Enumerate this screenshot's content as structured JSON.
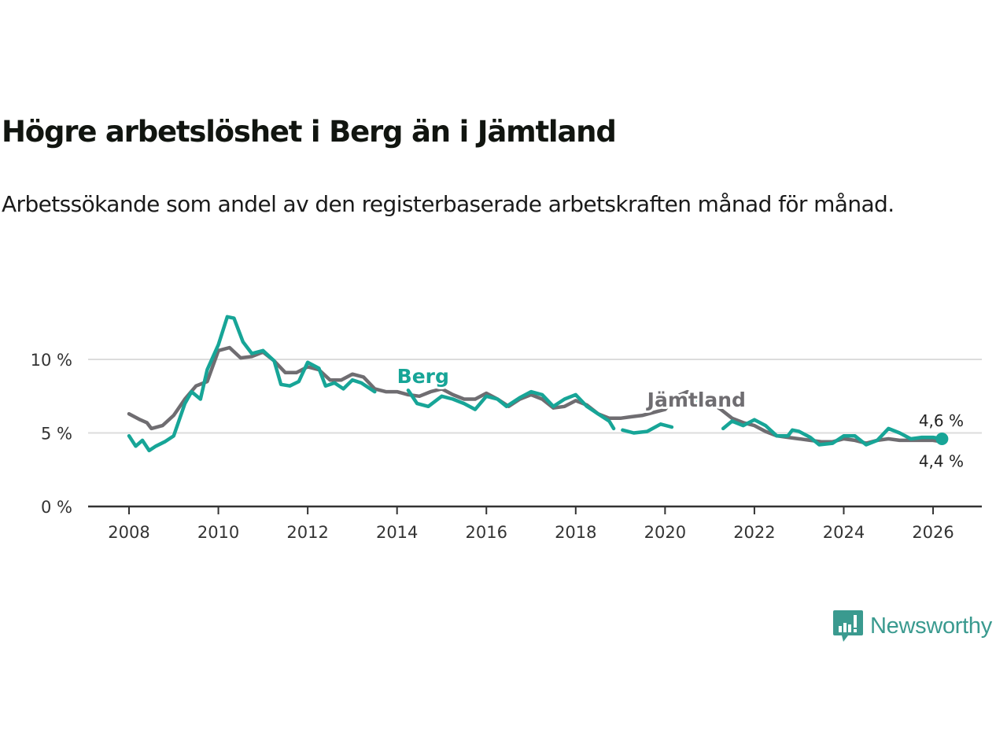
{
  "header": {
    "title": "Högre arbetslöshet i Berg än i Jämtland",
    "subtitle": "Arbetssökande som andel av den registerbaserade arbetskraften månad för månad."
  },
  "branding": {
    "name": "Newsworthy",
    "icon": "newsworthy-chart-bubble-icon",
    "color": "#3a9a8f"
  },
  "chart_data": {
    "type": "line",
    "title": "Högre arbetslöshet i Berg än i Jämtland",
    "subtitle": "Arbetssökande som andel av den registerbaserade arbetskraften månad för månad.",
    "xlabel": "",
    "ylabel": "",
    "xlim": [
      2007.2,
      2027.2
    ],
    "ylim": [
      0,
      13
    ],
    "x_ticks": [
      2008,
      2010,
      2012,
      2014,
      2016,
      2018,
      2020,
      2022,
      2024,
      2026
    ],
    "x_tick_labels": [
      "2008",
      "2010",
      "2012",
      "2014",
      "2016",
      "2018",
      "2020",
      "2022",
      "2024",
      "2026"
    ],
    "y_ticks": [
      0,
      5,
      10
    ],
    "y_tick_labels": [
      "0 %",
      "5 %",
      "10 %"
    ],
    "grid": "horizontal",
    "legend": "inline-labels",
    "series": [
      {
        "name": "Jämtland",
        "color": "#6f6d71",
        "label_at": [
          2019.6,
          6.8
        ],
        "end_label": "4,4 %",
        "x": [
          2008.0,
          2008.25,
          2008.4,
          2008.5,
          2008.75,
          2009.0,
          2009.25,
          2009.5,
          2009.75,
          2010.0,
          2010.25,
          2010.5,
          2010.75,
          2011.0,
          2011.25,
          2011.5,
          2011.75,
          2012.0,
          2012.25,
          2012.5,
          2012.75,
          2013.0,
          2013.25,
          2013.5,
          2013.75,
          2014.0,
          2014.25,
          2014.5,
          2014.75,
          2015.0,
          2015.25,
          2015.5,
          2015.75,
          2016.0,
          2016.25,
          2016.5,
          2016.75,
          2017.0,
          2017.25,
          2017.5,
          2017.75,
          2018.0,
          2018.25,
          2018.5,
          2018.75,
          2019.0,
          2019.25,
          2019.5,
          2019.75,
          2020.0,
          2020.25,
          2020.5,
          2020.75,
          2021.0,
          2021.25,
          2021.5,
          2021.75,
          2022.0,
          2022.25,
          2022.5,
          2022.75,
          2023.0,
          2023.25,
          2023.5,
          2023.75,
          2024.0,
          2024.25,
          2024.5,
          2024.75,
          2025.0,
          2025.25,
          2025.5,
          2025.75,
          2026.0,
          2026.2
        ],
        "y": [
          6.3,
          5.9,
          5.7,
          5.3,
          5.5,
          6.2,
          7.3,
          8.2,
          8.5,
          10.6,
          10.8,
          10.1,
          10.2,
          10.5,
          9.9,
          9.1,
          9.1,
          9.5,
          9.3,
          8.6,
          8.6,
          9.0,
          8.8,
          8.0,
          7.8,
          7.8,
          7.6,
          7.5,
          7.8,
          8.0,
          7.6,
          7.3,
          7.3,
          7.7,
          7.3,
          6.8,
          7.3,
          7.6,
          7.3,
          6.7,
          6.8,
          7.2,
          6.9,
          6.3,
          6.0,
          6.0,
          6.1,
          6.2,
          6.4,
          6.6,
          7.5,
          7.8,
          7.3,
          7.1,
          6.6,
          6.0,
          5.7,
          5.5,
          5.1,
          4.8,
          4.7,
          4.6,
          4.5,
          4.4,
          4.4,
          4.6,
          4.5,
          4.3,
          4.5,
          4.6,
          4.5,
          4.5,
          4.5,
          4.5,
          4.4
        ]
      },
      {
        "name": "Berg",
        "color": "#17a597",
        "label_at": [
          2014.0,
          8.4
        ],
        "end_label": "4,6 %",
        "x": [
          2008.0,
          2008.15,
          2008.3,
          2008.45,
          2008.6,
          2008.8,
          2009.0,
          2009.25,
          2009.4,
          2009.6,
          2009.75,
          2010.0,
          2010.2,
          2010.35,
          2010.55,
          2010.75,
          2011.0,
          2011.25,
          2011.4,
          2011.6,
          2011.8,
          2012.0,
          2012.25,
          2012.4,
          2012.6,
          2012.8,
          2013.0,
          2013.2,
          2013.5,
          2014.25,
          2014.45,
          2014.7,
          2015.0,
          2015.25,
          2015.5,
          2015.75,
          2016.0,
          2016.25,
          2016.45,
          2016.75,
          2017.0,
          2017.25,
          2017.5,
          2017.75,
          2018.0,
          2018.25,
          2018.5,
          2018.75,
          2018.85,
          2019.05,
          2019.3,
          2019.6,
          2019.9,
          2020.15,
          2020.6,
          2020.9,
          2021.3,
          2021.5,
          2021.75,
          2022.0,
          2022.25,
          2022.5,
          2022.75,
          2022.85,
          2023.0,
          2023.25,
          2023.45,
          2023.75,
          2024.0,
          2024.25,
          2024.5,
          2024.75,
          2025.0,
          2025.25,
          2025.5,
          2025.75,
          2026.0,
          2026.2
        ],
        "y": [
          4.8,
          4.1,
          4.5,
          3.8,
          4.1,
          4.4,
          4.8,
          7.0,
          7.8,
          7.3,
          9.3,
          11.0,
          12.9,
          12.8,
          11.2,
          10.4,
          10.6,
          9.9,
          8.3,
          8.2,
          8.5,
          9.8,
          9.4,
          8.2,
          8.4,
          8.0,
          8.6,
          8.4,
          7.8,
          7.9,
          7.0,
          6.8,
          7.5,
          7.3,
          7.0,
          6.6,
          7.5,
          7.3,
          6.8,
          7.4,
          7.8,
          7.6,
          6.8,
          7.3,
          7.6,
          6.8,
          6.3,
          5.8,
          5.3,
          5.2,
          5.0,
          5.1,
          5.6,
          5.4,
          7.3,
          7.2,
          5.3,
          5.8,
          5.5,
          5.9,
          5.5,
          4.8,
          4.8,
          5.2,
          5.1,
          4.7,
          4.2,
          4.3,
          4.8,
          4.8,
          4.2,
          4.5,
          5.3,
          5.0,
          4.6,
          4.7,
          4.7,
          4.6
        ],
        "gaps_after_x": [
          2013.5,
          2018.85,
          2020.15,
          2020.9
        ]
      }
    ]
  }
}
